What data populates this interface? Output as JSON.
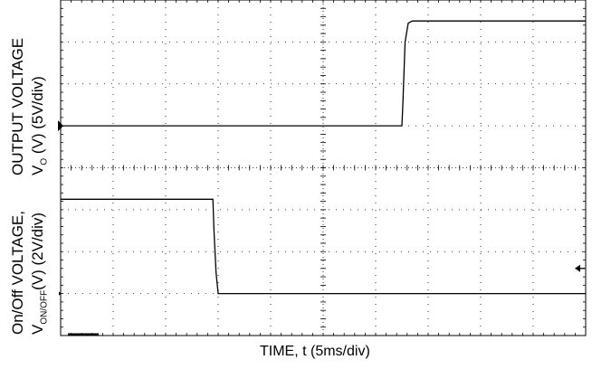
{
  "chart_data": [
    {
      "type": "line",
      "title": "",
      "ylabel_line1": "OUTPUT VOLTAGE",
      "ylabel_line2_main": "V",
      "ylabel_line2_sub": "O",
      "ylabel_line2_rest": " (V) (5V/div)",
      "y_units_per_div": 5,
      "x_units_per_div": 5,
      "xlim_div": [
        0,
        10
      ],
      "ylim_div": [
        -1,
        4
      ],
      "series": [
        {
          "x": [
            0,
            6.5,
            6.52,
            6.56,
            6.62,
            6.7,
            10
          ],
          "y": [
            0,
            0,
            0.6,
            2.0,
            2.45,
            2.5,
            2.5
          ]
        }
      ],
      "grid": true
    },
    {
      "type": "line",
      "title": "",
      "ylabel_line1": "On/Off VOLTAGE,",
      "ylabel_line2_main": "V",
      "ylabel_line2_sub": "ON/OFF",
      "ylabel_line2_rest": "(V) (2V/div)",
      "y_units_per_div": 2,
      "x_units_per_div": 5,
      "xlim_div": [
        0,
        10
      ],
      "ylim_div": [
        -1,
        4
      ],
      "series": [
        {
          "x": [
            0,
            2.9,
            2.92,
            2.96,
            3.0,
            10
          ],
          "y": [
            2.25,
            2.25,
            1.5,
            0.5,
            0,
            0
          ]
        }
      ],
      "grid": true
    }
  ],
  "xlabel": "TIME, t (5ms/div)",
  "colors": {
    "trace": "#000000",
    "frame": "#000000",
    "grid": "#000000"
  }
}
